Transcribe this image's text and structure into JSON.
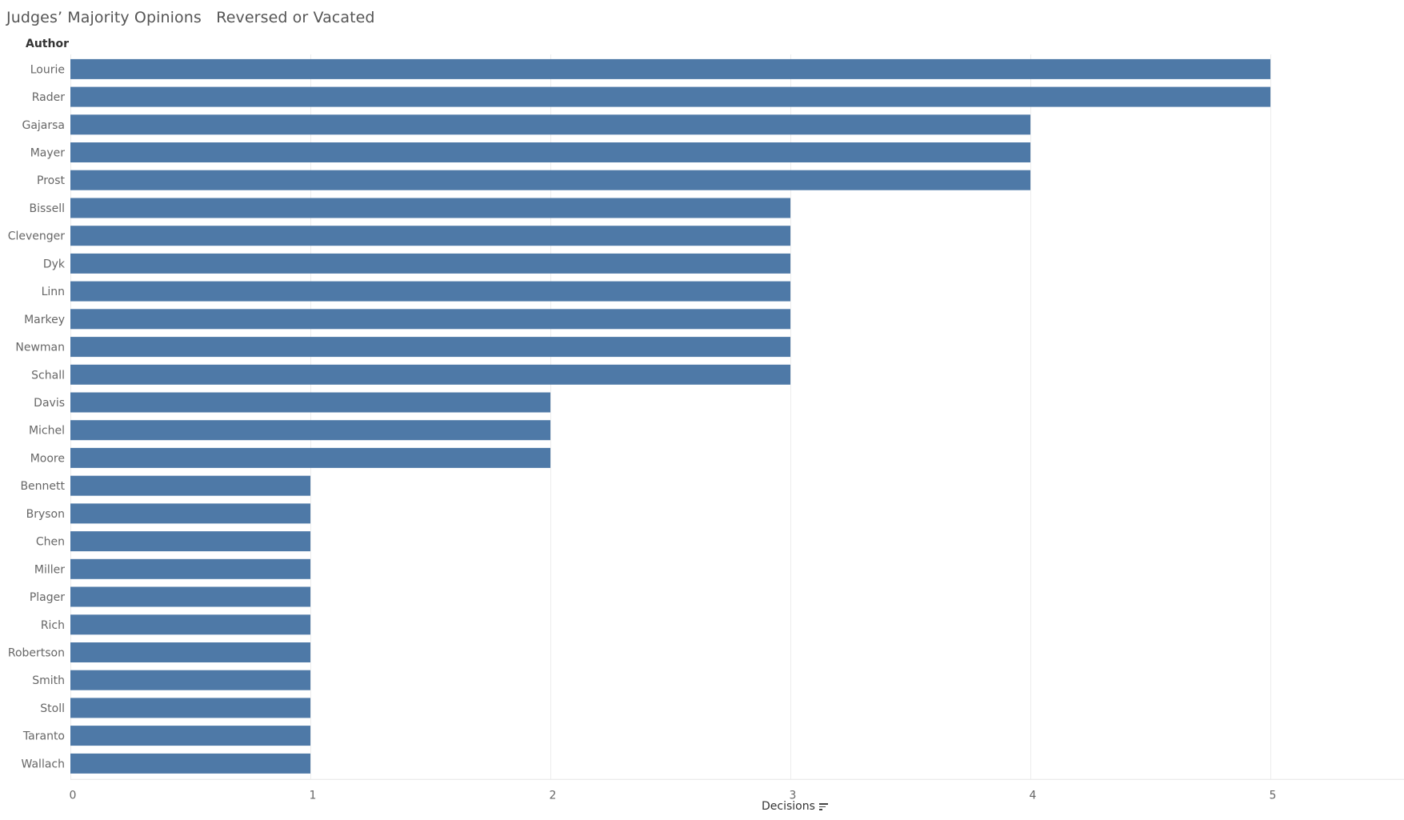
{
  "title": "Judges’ Majority Opinions   Reversed or Vacated",
  "colors": {
    "bar": "#4e79a7",
    "grid": "#ececec",
    "axis_text": "#666666"
  },
  "chart_data": {
    "type": "bar",
    "orientation": "horizontal",
    "title": "Judges’ Majority Opinions   Reversed or Vacated",
    "row_header": "Author",
    "xlabel": "Decisions",
    "xlabel_icon": "sort-descending-icon",
    "xlim": [
      0,
      5.5
    ],
    "xticks": [
      0,
      1,
      2,
      3,
      4,
      5
    ],
    "grid": "vertical",
    "legend": "none",
    "categories": [
      "Lourie",
      "Rader",
      "Gajarsa",
      "Mayer",
      "Prost",
      "Bissell",
      "Clevenger",
      "Dyk",
      "Linn",
      "Markey",
      "Newman",
      "Schall",
      "Davis",
      "Michel",
      "Moore",
      "Bennett",
      "Bryson",
      "Chen",
      "Miller",
      "Plager",
      "Rich",
      "Robertson",
      "Smith",
      "Stoll",
      "Taranto",
      "Wallach"
    ],
    "values": [
      5,
      5,
      4,
      4,
      4,
      3,
      3,
      3,
      3,
      3,
      3,
      3,
      2,
      2,
      2,
      1,
      1,
      1,
      1,
      1,
      1,
      1,
      1,
      1,
      1,
      1
    ]
  }
}
